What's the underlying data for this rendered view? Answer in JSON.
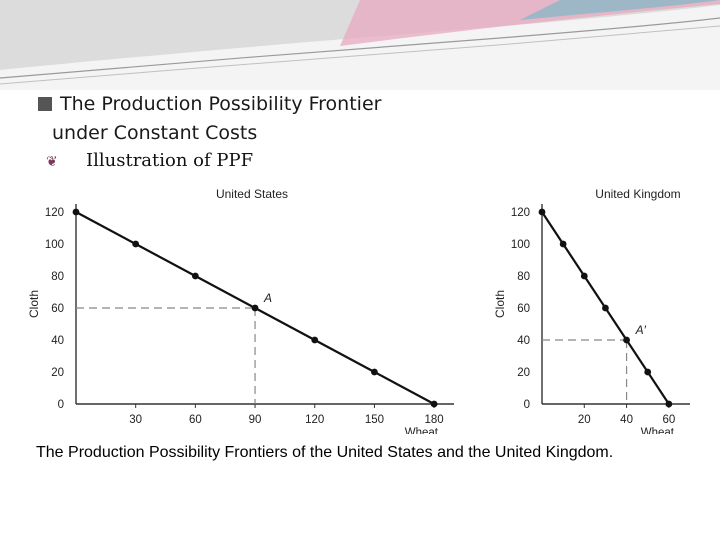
{
  "slide": {
    "title_line1": "The Production Possibility Frontier",
    "title_line2": "under Constant Costs",
    "subtitle": "Illustration of PPF",
    "caption": "The Production Possibility Frontiers of the United States and the United Kingdom.",
    "colors": {
      "header_pink": "#e8a9c0",
      "header_teal": "#7fb8c8",
      "header_gray": "#c8c8c8"
    }
  },
  "chart_data": [
    {
      "type": "line",
      "title": "United States",
      "xlabel": "Wheat",
      "ylabel": "Cloth",
      "xlim": [
        0,
        190
      ],
      "ylim": [
        0,
        125
      ],
      "xticks": [
        30,
        60,
        90,
        120,
        150,
        180
      ],
      "yticks": [
        0,
        20,
        40,
        60,
        80,
        100,
        120
      ],
      "points": [
        {
          "x": 0,
          "y": 120
        },
        {
          "x": 30,
          "y": 100
        },
        {
          "x": 60,
          "y": 80
        },
        {
          "x": 90,
          "y": 60
        },
        {
          "x": 120,
          "y": 40
        },
        {
          "x": 150,
          "y": 20
        },
        {
          "x": 180,
          "y": 0
        }
      ],
      "annotation": {
        "label": "A",
        "x": 90,
        "y": 60
      },
      "grid": false
    },
    {
      "type": "line",
      "title": "United Kingdom",
      "xlabel": "Wheat",
      "ylabel": "Cloth",
      "xlim": [
        0,
        70
      ],
      "ylim": [
        0,
        125
      ],
      "xticks": [
        20,
        40,
        60
      ],
      "yticks": [
        0,
        20,
        40,
        60,
        80,
        100,
        120
      ],
      "points": [
        {
          "x": 0,
          "y": 120
        },
        {
          "x": 10,
          "y": 100
        },
        {
          "x": 20,
          "y": 80
        },
        {
          "x": 30,
          "y": 60
        },
        {
          "x": 40,
          "y": 40
        },
        {
          "x": 50,
          "y": 20
        },
        {
          "x": 60,
          "y": 0
        }
      ],
      "annotation": {
        "label": "A′",
        "x": 40,
        "y": 40
      },
      "grid": false
    }
  ]
}
